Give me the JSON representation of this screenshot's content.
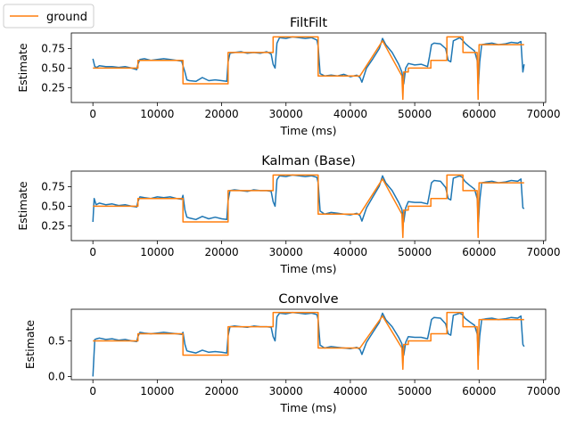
{
  "legend": {
    "entries": [
      {
        "label": "ground",
        "color": "#ff7f0e"
      }
    ],
    "position": "top-left"
  },
  "colors": {
    "estimate": "#1f77b4",
    "ground": "#ff7f0e"
  },
  "chart_data": [
    {
      "type": "line",
      "title": "FiltFilt",
      "xlabel": "Time (ms)",
      "ylabel": "Estimate",
      "xlim": [
        -3350,
        70350
      ],
      "ylim": [
        0.06,
        0.95
      ],
      "xticks": [
        0,
        10000,
        20000,
        30000,
        40000,
        50000,
        60000,
        70000
      ],
      "yticks": [
        0.25,
        0.5,
        0.75
      ],
      "ytick_labels": [
        "0.25",
        "0.50",
        "0.75"
      ],
      "series": [
        {
          "name": "ground",
          "x": [
            0,
            7000,
            7000,
            14000,
            14000,
            21000,
            21000,
            28000,
            28000,
            35000,
            35000,
            41500,
            41500,
            45000,
            48000,
            48150,
            48300,
            49000,
            49000,
            52500,
            52500,
            55000,
            55000,
            57500,
            57500,
            59700,
            59850,
            60000,
            60500,
            60500,
            67000
          ],
          "y": [
            0.5,
            0.5,
            0.6,
            0.6,
            0.3,
            0.3,
            0.7,
            0.7,
            0.9,
            0.9,
            0.4,
            0.4,
            0.4,
            0.85,
            0.4,
            0.1,
            0.45,
            0.45,
            0.5,
            0.5,
            0.6,
            0.6,
            0.9,
            0.9,
            0.7,
            0.7,
            0.1,
            0.8,
            0.8,
            0.8,
            0.8
          ]
        },
        {
          "name": "",
          "x": [
            0,
            300,
            600,
            1000,
            2000,
            3000,
            4000,
            5000,
            6000,
            6800,
            7000,
            7300,
            8000,
            9000,
            10000,
            11000,
            12000,
            13000,
            13800,
            14000,
            14300,
            14600,
            15000,
            16000,
            17000,
            18000,
            19000,
            20000,
            20800,
            21000,
            21300,
            22000,
            23000,
            24000,
            25000,
            26000,
            27000,
            27700,
            28000,
            28300,
            28600,
            29000,
            30000,
            31000,
            32000,
            33000,
            34000,
            34800,
            35000,
            35300,
            36000,
            37000,
            38000,
            39000,
            40000,
            41000,
            41500,
            41800,
            42500,
            43500,
            44500,
            45000,
            45500,
            46500,
            47500,
            48000,
            48300,
            48600,
            49000,
            50000,
            51000,
            52000,
            52300,
            52600,
            53000,
            54000,
            54800,
            55200,
            55600,
            56000,
            57000,
            57400,
            57800,
            58500,
            59300,
            59700,
            59900,
            60100,
            60400,
            61000,
            62000,
            63000,
            64000,
            65000,
            66000,
            66500,
            66800,
            67000
          ],
          "y": [
            0.62,
            0.52,
            0.51,
            0.53,
            0.52,
            0.52,
            0.51,
            0.52,
            0.5,
            0.48,
            0.55,
            0.61,
            0.62,
            0.6,
            0.61,
            0.62,
            0.61,
            0.6,
            0.59,
            0.53,
            0.45,
            0.35,
            0.34,
            0.33,
            0.38,
            0.34,
            0.35,
            0.34,
            0.33,
            0.58,
            0.69,
            0.7,
            0.71,
            0.69,
            0.7,
            0.69,
            0.71,
            0.68,
            0.55,
            0.5,
            0.82,
            0.89,
            0.88,
            0.9,
            0.89,
            0.88,
            0.89,
            0.86,
            0.78,
            0.43,
            0.4,
            0.41,
            0.4,
            0.42,
            0.39,
            0.41,
            0.38,
            0.32,
            0.5,
            0.62,
            0.75,
            0.88,
            0.8,
            0.7,
            0.55,
            0.45,
            0.3,
            0.5,
            0.56,
            0.54,
            0.55,
            0.52,
            0.65,
            0.8,
            0.82,
            0.81,
            0.75,
            0.6,
            0.58,
            0.85,
            0.89,
            0.86,
            0.82,
            0.77,
            0.72,
            0.6,
            0.3,
            0.58,
            0.8,
            0.81,
            0.82,
            0.8,
            0.81,
            0.83,
            0.82,
            0.84,
            0.45,
            0.55
          ]
        }
      ]
    },
    {
      "type": "line",
      "title": "Kalman (Base)",
      "xlabel": "Time (ms)",
      "ylabel": "Estimate",
      "xlim": [
        -3350,
        70350
      ],
      "ylim": [
        0.06,
        0.95
      ],
      "xticks": [
        0,
        10000,
        20000,
        30000,
        40000,
        50000,
        60000,
        70000
      ],
      "yticks": [
        0.25,
        0.5,
        0.75
      ],
      "ytick_labels": [
        "0.25",
        "0.50",
        "0.75"
      ],
      "series": [
        {
          "name": "ground",
          "x": [
            0,
            7000,
            7000,
            14000,
            14000,
            21000,
            21000,
            28000,
            28000,
            35000,
            35000,
            41500,
            41500,
            45000,
            48000,
            48150,
            48300,
            49000,
            49000,
            52500,
            52500,
            55000,
            55000,
            57500,
            57500,
            59700,
            59850,
            60000,
            60500,
            60500,
            67000
          ],
          "y": [
            0.5,
            0.5,
            0.6,
            0.6,
            0.3,
            0.3,
            0.7,
            0.7,
            0.9,
            0.9,
            0.4,
            0.4,
            0.4,
            0.85,
            0.4,
            0.1,
            0.45,
            0.45,
            0.5,
            0.5,
            0.6,
            0.6,
            0.9,
            0.9,
            0.7,
            0.7,
            0.1,
            0.8,
            0.8,
            0.8,
            0.8
          ]
        },
        {
          "name": "",
          "x": [
            0,
            200,
            500,
            1000,
            2000,
            3000,
            4000,
            5000,
            6000,
            6800,
            7000,
            7300,
            8000,
            9000,
            10000,
            11000,
            12000,
            13000,
            13800,
            14000,
            14300,
            14600,
            15000,
            16000,
            17000,
            18000,
            19000,
            20000,
            20800,
            21000,
            21300,
            22000,
            23000,
            24000,
            25000,
            26000,
            27000,
            27700,
            28000,
            28300,
            28600,
            29000,
            30000,
            31000,
            32000,
            33000,
            34000,
            34800,
            35000,
            35300,
            36000,
            37000,
            38000,
            39000,
            40000,
            41000,
            41500,
            41800,
            42500,
            43500,
            44500,
            45000,
            45500,
            46500,
            47500,
            48000,
            48300,
            48600,
            49000,
            50000,
            51000,
            52000,
            52300,
            52600,
            53000,
            54000,
            54800,
            55200,
            55600,
            56000,
            57000,
            57400,
            57800,
            58500,
            59300,
            59700,
            59900,
            60100,
            60400,
            61000,
            62000,
            63000,
            64000,
            65000,
            66000,
            66500,
            66800,
            67000
          ],
          "y": [
            0.3,
            0.6,
            0.52,
            0.54,
            0.52,
            0.53,
            0.51,
            0.52,
            0.5,
            0.49,
            0.56,
            0.62,
            0.61,
            0.6,
            0.62,
            0.61,
            0.62,
            0.6,
            0.59,
            0.64,
            0.45,
            0.36,
            0.35,
            0.33,
            0.37,
            0.34,
            0.36,
            0.34,
            0.33,
            0.57,
            0.7,
            0.71,
            0.7,
            0.69,
            0.71,
            0.7,
            0.7,
            0.69,
            0.56,
            0.5,
            0.84,
            0.89,
            0.88,
            0.9,
            0.89,
            0.88,
            0.89,
            0.87,
            0.8,
            0.44,
            0.4,
            0.42,
            0.41,
            0.4,
            0.39,
            0.41,
            0.38,
            0.31,
            0.48,
            0.62,
            0.76,
            0.89,
            0.8,
            0.7,
            0.55,
            0.46,
            0.3,
            0.48,
            0.56,
            0.55,
            0.55,
            0.53,
            0.66,
            0.8,
            0.83,
            0.82,
            0.74,
            0.6,
            0.58,
            0.86,
            0.89,
            0.87,
            0.82,
            0.77,
            0.72,
            0.6,
            0.3,
            0.57,
            0.8,
            0.81,
            0.82,
            0.8,
            0.81,
            0.83,
            0.82,
            0.85,
            0.48,
            0.47
          ]
        }
      ]
    },
    {
      "type": "line",
      "title": "Convolve",
      "xlabel": "Time (ms)",
      "ylabel": "Estimate",
      "xlim": [
        -3350,
        70350
      ],
      "ylim": [
        -0.045,
        0.945
      ],
      "xticks": [
        0,
        10000,
        20000,
        30000,
        40000,
        50000,
        60000,
        70000
      ],
      "yticks": [
        0.0,
        0.5
      ],
      "ytick_labels": [
        "0.0",
        "0.5"
      ],
      "series": [
        {
          "name": "ground",
          "x": [
            0,
            7000,
            7000,
            14000,
            14000,
            21000,
            21000,
            28000,
            28000,
            35000,
            35000,
            41500,
            41500,
            45000,
            48000,
            48150,
            48300,
            49000,
            49000,
            52500,
            52500,
            55000,
            55000,
            57500,
            57500,
            59700,
            59850,
            60000,
            60500,
            60500,
            67000
          ],
          "y": [
            0.5,
            0.5,
            0.6,
            0.6,
            0.3,
            0.3,
            0.7,
            0.7,
            0.9,
            0.9,
            0.4,
            0.4,
            0.4,
            0.85,
            0.4,
            0.1,
            0.45,
            0.45,
            0.5,
            0.5,
            0.6,
            0.6,
            0.9,
            0.9,
            0.7,
            0.7,
            0.1,
            0.8,
            0.8,
            0.8,
            0.8
          ]
        },
        {
          "name": "",
          "x": [
            0,
            300,
            600,
            1000,
            2000,
            3000,
            4000,
            5000,
            6000,
            6800,
            7000,
            7300,
            8000,
            9000,
            10000,
            11000,
            12000,
            13000,
            13800,
            14000,
            14300,
            14600,
            15000,
            16000,
            17000,
            18000,
            19000,
            20000,
            20800,
            21000,
            21300,
            22000,
            23000,
            24000,
            25000,
            26000,
            27000,
            27700,
            28000,
            28300,
            28600,
            29000,
            30000,
            31000,
            32000,
            33000,
            34000,
            34800,
            35000,
            35300,
            36000,
            37000,
            38000,
            39000,
            40000,
            41000,
            41500,
            41800,
            42500,
            43500,
            44500,
            45000,
            45500,
            46500,
            47500,
            48000,
            48300,
            48600,
            49000,
            50000,
            51000,
            52000,
            52300,
            52600,
            53000,
            54000,
            54800,
            55200,
            55600,
            56000,
            57000,
            57400,
            57800,
            58500,
            59300,
            59700,
            59900,
            60100,
            60400,
            61000,
            62000,
            63000,
            64000,
            65000,
            66000,
            66500,
            66800,
            67000
          ],
          "y": [
            0.0,
            0.52,
            0.53,
            0.54,
            0.52,
            0.53,
            0.51,
            0.52,
            0.5,
            0.49,
            0.56,
            0.62,
            0.61,
            0.6,
            0.61,
            0.62,
            0.61,
            0.6,
            0.59,
            0.62,
            0.45,
            0.36,
            0.35,
            0.33,
            0.37,
            0.34,
            0.35,
            0.34,
            0.33,
            0.57,
            0.7,
            0.71,
            0.7,
            0.69,
            0.71,
            0.7,
            0.7,
            0.69,
            0.56,
            0.5,
            0.84,
            0.89,
            0.88,
            0.9,
            0.89,
            0.88,
            0.89,
            0.87,
            0.8,
            0.44,
            0.4,
            0.42,
            0.41,
            0.4,
            0.39,
            0.41,
            0.38,
            0.31,
            0.48,
            0.62,
            0.76,
            0.89,
            0.8,
            0.7,
            0.55,
            0.46,
            0.3,
            0.48,
            0.56,
            0.55,
            0.55,
            0.53,
            0.66,
            0.8,
            0.83,
            0.82,
            0.74,
            0.6,
            0.58,
            0.86,
            0.89,
            0.87,
            0.82,
            0.77,
            0.72,
            0.6,
            0.3,
            0.57,
            0.8,
            0.81,
            0.82,
            0.8,
            0.81,
            0.83,
            0.82,
            0.85,
            0.45,
            0.42
          ]
        }
      ]
    }
  ]
}
